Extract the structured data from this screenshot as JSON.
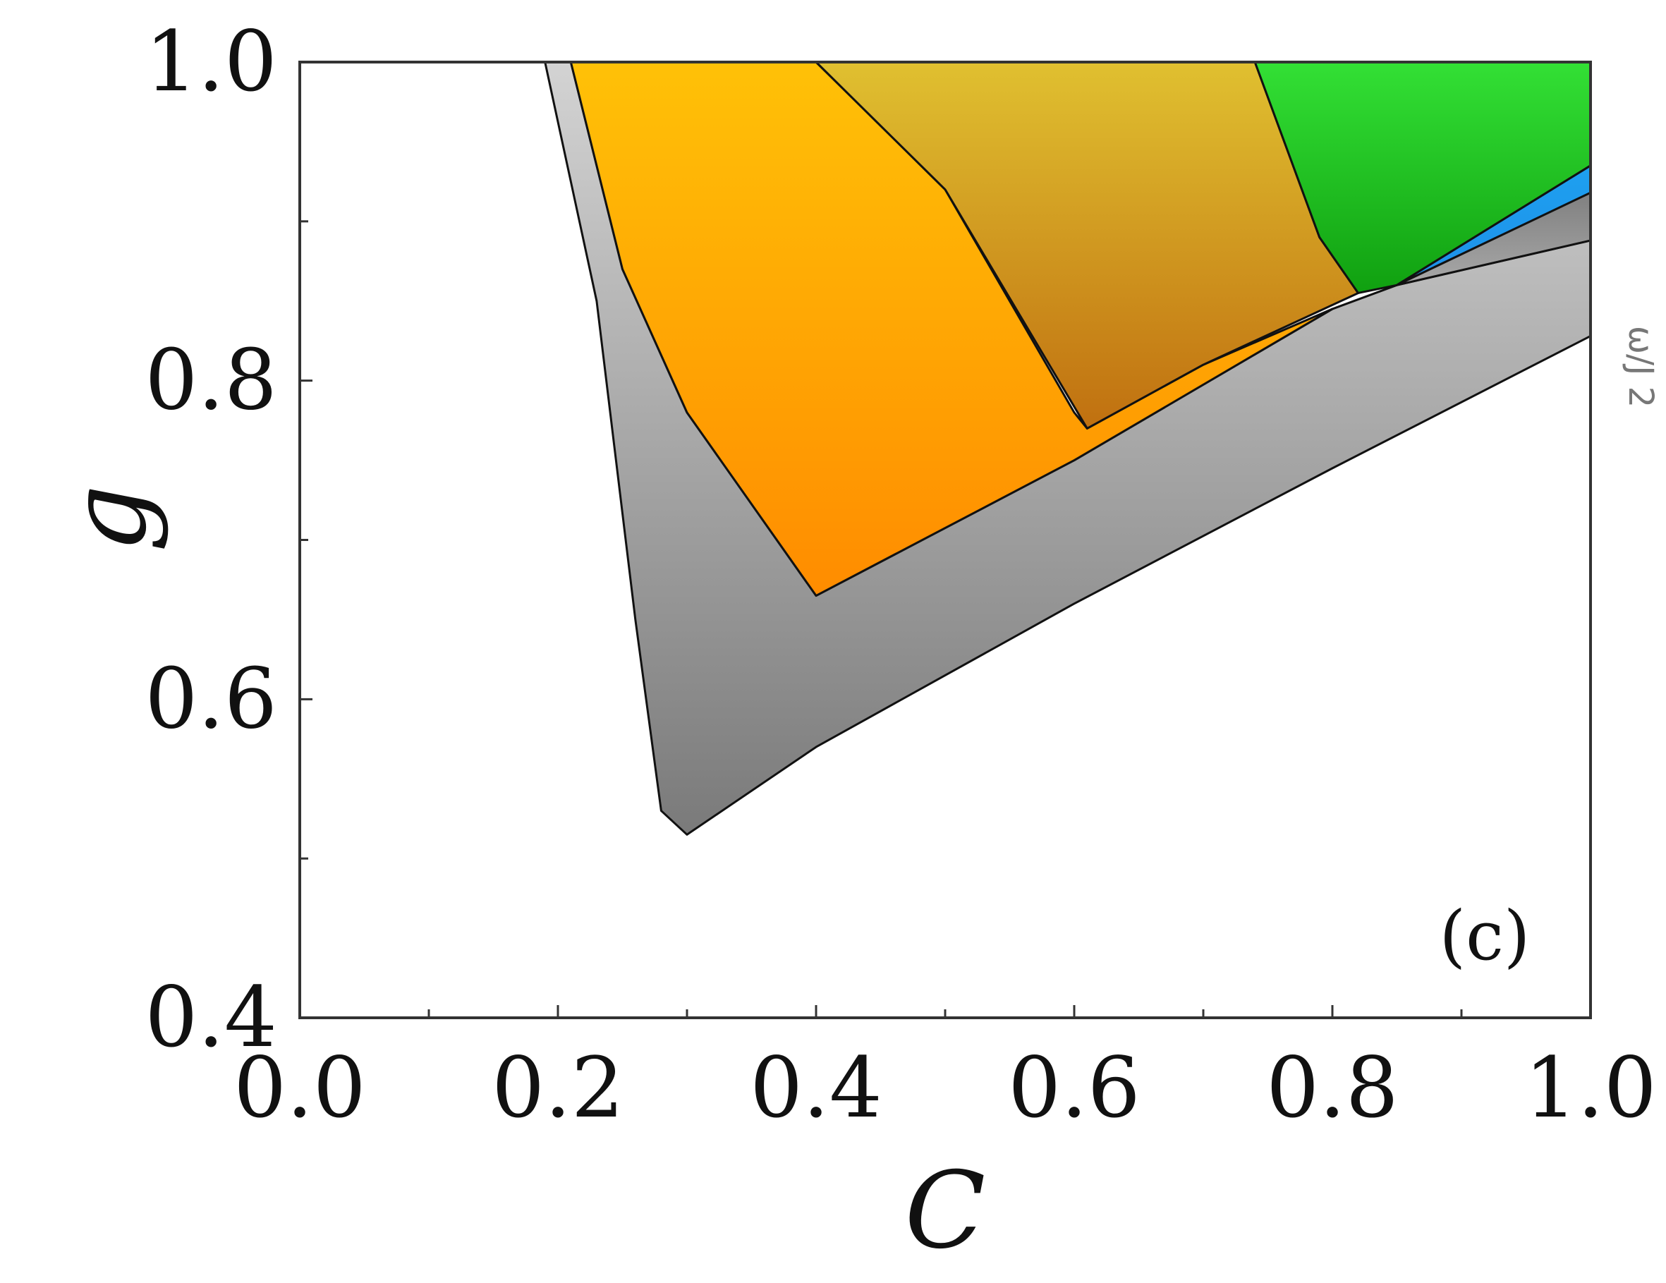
{
  "chart_data": {
    "type": "area",
    "xlabel": "C",
    "ylabel": "g",
    "xlim": [
      0.0,
      1.0
    ],
    "ylim": [
      0.4,
      1.0
    ],
    "x_ticks": [
      "0.0",
      "0.2",
      "0.4",
      "0.6",
      "0.8",
      "1.0"
    ],
    "y_ticks": [
      "0.4",
      "0.6",
      "0.8",
      "1.0"
    ],
    "x_minor_ticks": [
      0.1,
      0.3,
      0.5,
      0.7,
      0.9
    ],
    "y_minor_ticks": [
      0.5,
      0.7,
      0.9
    ],
    "panel_label": "(c)",
    "side_annotation": "ω/J 2",
    "grid": false,
    "regions": [
      {
        "id": "gray-outer",
        "colors": [
          "#d3d3d3",
          "#7a7a7a"
        ],
        "boundary": [
          [
            0.19,
            1.0
          ],
          [
            0.21,
            1.0
          ],
          [
            0.25,
            0.87
          ],
          [
            0.3,
            0.78
          ],
          [
            0.4,
            0.665
          ],
          [
            0.6,
            0.75
          ],
          [
            0.8,
            0.845
          ],
          [
            0.85,
            0.86
          ],
          [
            1.0,
            0.888
          ],
          [
            1.0,
            0.828
          ],
          [
            0.8,
            0.745
          ],
          [
            0.6,
            0.66
          ],
          [
            0.4,
            0.57
          ],
          [
            0.3,
            0.515
          ],
          [
            0.28,
            0.53
          ],
          [
            0.26,
            0.65
          ],
          [
            0.23,
            0.85
          ]
        ]
      },
      {
        "id": "orange",
        "colors": [
          "#ffc107",
          "#ff8c00"
        ],
        "boundary": [
          [
            0.21,
            1.0
          ],
          [
            0.4,
            1.0
          ],
          [
            0.5,
            0.92
          ],
          [
            0.6,
            0.78
          ],
          [
            0.61,
            0.77
          ],
          [
            0.7,
            0.81
          ],
          [
            0.8,
            0.845
          ],
          [
            0.6,
            0.75
          ],
          [
            0.4,
            0.665
          ],
          [
            0.3,
            0.78
          ],
          [
            0.25,
            0.87
          ]
        ]
      },
      {
        "id": "gold",
        "colors": [
          "#e0c030",
          "#c07010"
        ],
        "boundary": [
          [
            0.4,
            1.0
          ],
          [
            0.74,
            1.0
          ],
          [
            0.79,
            0.89
          ],
          [
            0.82,
            0.855
          ],
          [
            0.7,
            0.81
          ],
          [
            0.61,
            0.77
          ],
          [
            0.5,
            0.92
          ]
        ]
      },
      {
        "id": "green",
        "colors": [
          "#33e035",
          "#10a010"
        ],
        "boundary": [
          [
            0.74,
            1.0
          ],
          [
            1.0,
            1.0
          ],
          [
            1.0,
            0.935
          ],
          [
            0.85,
            0.86
          ],
          [
            0.82,
            0.855
          ],
          [
            0.79,
            0.89
          ]
        ]
      },
      {
        "id": "blue",
        "colors": [
          "#1ea0f0",
          "#1e90e8"
        ],
        "boundary": [
          [
            1.0,
            0.935
          ],
          [
            1.0,
            0.918
          ],
          [
            0.85,
            0.86
          ]
        ]
      },
      {
        "id": "dark-gray",
        "colors": [
          "#808080",
          "#a8a8a8"
        ],
        "boundary": [
          [
            1.0,
            0.918
          ],
          [
            1.0,
            0.888
          ],
          [
            0.85,
            0.86
          ]
        ]
      }
    ]
  }
}
